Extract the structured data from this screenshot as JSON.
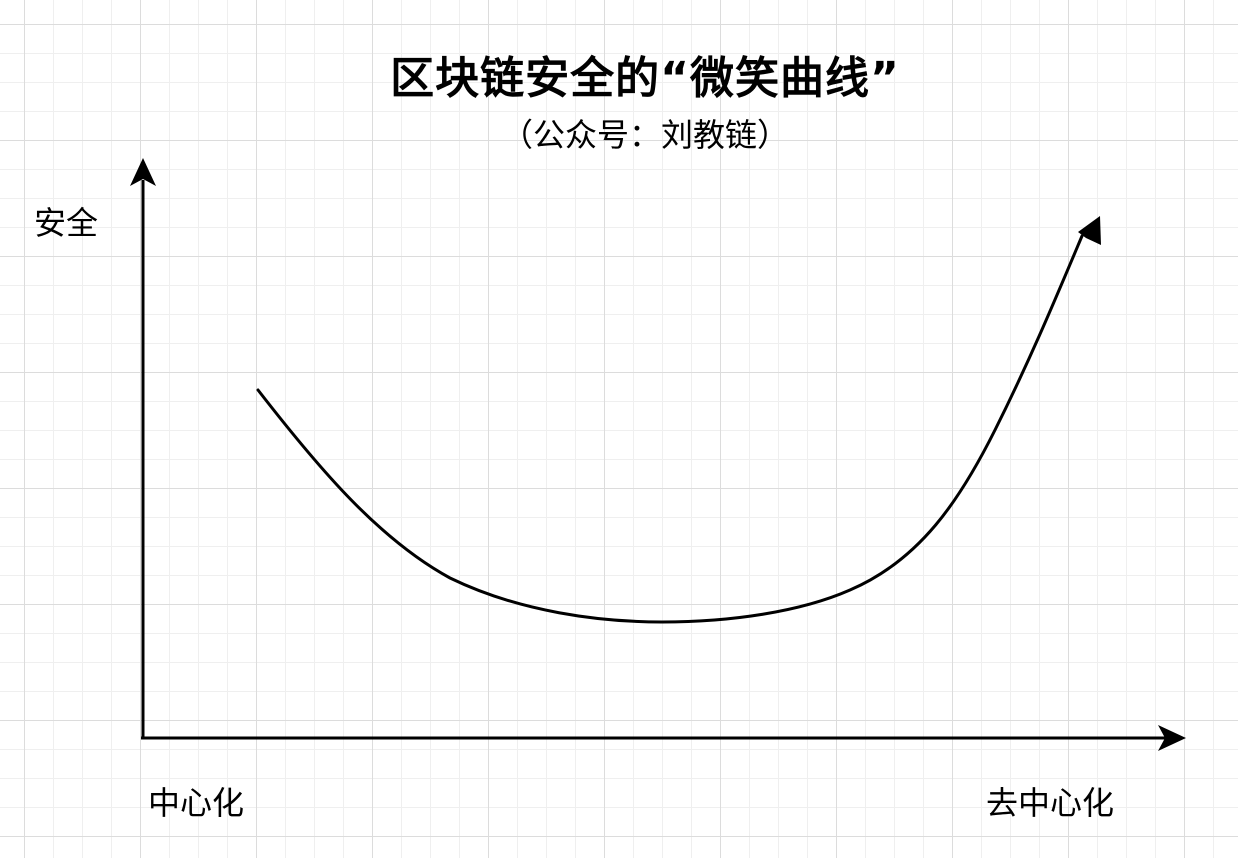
{
  "title": "区块链安全的“微笑曲线”",
  "subtitle": "（公众号：刘教链）",
  "axes": {
    "y_label": "安全",
    "x_start_label": "中心化",
    "x_end_label": "去中心化"
  },
  "colors": {
    "background": "#ffffff",
    "grid": "#dcdcdc",
    "stroke": "#000000"
  }
}
